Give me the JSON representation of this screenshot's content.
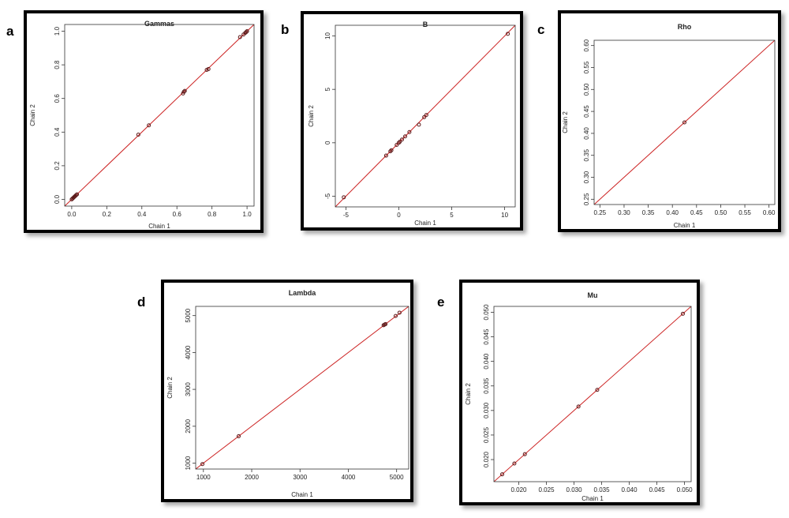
{
  "chart_data": [
    {
      "letter": "a",
      "type": "scatter",
      "title": "Gammas",
      "xlabel": "Chain 1",
      "ylabel": "Chain 2",
      "xlim": [
        -0.04,
        1.04
      ],
      "ylim": [
        -0.04,
        1.04
      ],
      "xticks": [
        0.0,
        0.2,
        0.4,
        0.6,
        0.8,
        1.0
      ],
      "yticks": [
        0.0,
        0.2,
        0.4,
        0.6,
        0.8,
        1.0
      ],
      "xtick_labels": [
        "0.0",
        "0.2",
        "0.4",
        "0.6",
        "0.8",
        "1.0"
      ],
      "ytick_labels": [
        "0.0",
        "0.2",
        "0.4",
        "0.6",
        "0.8",
        "1.0"
      ],
      "reference_line": "y = x",
      "line_color": "#cc2222",
      "point_color": "#5a1a1a",
      "points": [
        [
          0.0,
          0.0
        ],
        [
          0.005,
          0.005
        ],
        [
          0.01,
          0.01
        ],
        [
          0.015,
          0.015
        ],
        [
          0.02,
          0.02
        ],
        [
          0.025,
          0.025
        ],
        [
          0.03,
          0.03
        ],
        [
          0.38,
          0.385
        ],
        [
          0.44,
          0.44
        ],
        [
          0.635,
          0.63
        ],
        [
          0.64,
          0.64
        ],
        [
          0.645,
          0.645
        ],
        [
          0.77,
          0.77
        ],
        [
          0.78,
          0.775
        ],
        [
          0.96,
          0.965
        ],
        [
          0.98,
          0.98
        ],
        [
          0.99,
          0.99
        ],
        [
          0.995,
          0.995
        ],
        [
          1.0,
          1.0
        ]
      ]
    },
    {
      "letter": "b",
      "type": "scatter",
      "title": "B",
      "xlabel": "Chain 1",
      "ylabel": "Chain 2",
      "xlim": [
        -6.0,
        11.0
      ],
      "ylim": [
        -6.0,
        11.0
      ],
      "xticks": [
        -5,
        0,
        5,
        10
      ],
      "yticks": [
        -5,
        0,
        5,
        10
      ],
      "xtick_labels": [
        "-5",
        "0",
        "5",
        "10"
      ],
      "ytick_labels": [
        "-5",
        "0",
        "5",
        "10"
      ],
      "reference_line": "y = x",
      "line_color": "#cc2222",
      "point_color": "#5a1a1a",
      "points": [
        [
          -5.2,
          -5.1
        ],
        [
          -1.2,
          -1.2
        ],
        [
          -0.8,
          -0.8
        ],
        [
          -0.7,
          -0.7
        ],
        [
          -0.2,
          -0.2
        ],
        [
          0.0,
          0.0
        ],
        [
          0.1,
          0.1
        ],
        [
          0.3,
          0.3
        ],
        [
          0.6,
          0.6
        ],
        [
          1.0,
          1.0
        ],
        [
          1.9,
          1.7
        ],
        [
          2.4,
          2.4
        ],
        [
          2.6,
          2.6
        ],
        [
          10.3,
          10.2
        ]
      ]
    },
    {
      "letter": "c",
      "type": "scatter",
      "title": "Rho",
      "xlabel": "Chain 1",
      "ylabel": "Chain 2",
      "xlim": [
        0.238,
        0.612
      ],
      "ylim": [
        0.238,
        0.612
      ],
      "xticks": [
        0.25,
        0.3,
        0.35,
        0.4,
        0.45,
        0.5,
        0.55,
        0.6
      ],
      "yticks": [
        0.25,
        0.3,
        0.35,
        0.4,
        0.45,
        0.5,
        0.55,
        0.6
      ],
      "xtick_labels": [
        "0.25",
        "0.30",
        "0.35",
        "0.40",
        "0.45",
        "0.50",
        "0.55",
        "0.60"
      ],
      "ytick_labels": [
        "0.25",
        "0.30",
        "0.35",
        "0.40",
        "0.45",
        "0.50",
        "0.55",
        "0.60"
      ],
      "reference_line": "y = x",
      "line_color": "#cc2222",
      "point_color": "#5a1a1a",
      "points": [
        [
          0.425,
          0.425
        ]
      ]
    },
    {
      "letter": "d",
      "type": "scatter",
      "title": "Lambda",
      "xlabel": "Chain 1",
      "ylabel": "Chain 2",
      "xlim": [
        840,
        5250
      ],
      "ylim": [
        840,
        5250
      ],
      "xticks": [
        1000,
        2000,
        3000,
        4000,
        5000
      ],
      "yticks": [
        1000,
        2000,
        3000,
        4000,
        5000
      ],
      "xtick_labels": [
        "1000",
        "2000",
        "3000",
        "4000",
        "5000"
      ],
      "ytick_labels": [
        "1000",
        "2000",
        "3000",
        "4000",
        "5000"
      ],
      "reference_line": "y = x",
      "line_color": "#cc2222",
      "point_color": "#5a1a1a",
      "points": [
        [
          980,
          975
        ],
        [
          1730,
          1730
        ],
        [
          4730,
          4740
        ],
        [
          4750,
          4755
        ],
        [
          4770,
          4770
        ],
        [
          4980,
          4990
        ],
        [
          5060,
          5080
        ]
      ]
    },
    {
      "letter": "e",
      "type": "scatter",
      "title": "Mu",
      "xlabel": "Chain 1",
      "ylabel": "Chain 2",
      "xlim": [
        0.0155,
        0.0512
      ],
      "ylim": [
        0.0155,
        0.0512
      ],
      "xticks": [
        0.02,
        0.025,
        0.03,
        0.035,
        0.04,
        0.045,
        0.05
      ],
      "yticks": [
        0.02,
        0.025,
        0.03,
        0.035,
        0.04,
        0.045,
        0.05
      ],
      "xtick_labels": [
        "0.020",
        "0.025",
        "0.030",
        "0.035",
        "0.040",
        "0.045",
        "0.050"
      ],
      "ytick_labels": [
        "0.020",
        "0.025",
        "0.030",
        "0.035",
        "0.040",
        "0.045",
        "0.050"
      ],
      "reference_line": "y = x",
      "line_color": "#cc2222",
      "point_color": "#5a1a1a",
      "points": [
        [
          0.017,
          0.017
        ],
        [
          0.0192,
          0.0192
        ],
        [
          0.0211,
          0.0211
        ],
        [
          0.0308,
          0.0308
        ],
        [
          0.0342,
          0.0342
        ],
        [
          0.0497,
          0.0497
        ]
      ]
    }
  ]
}
